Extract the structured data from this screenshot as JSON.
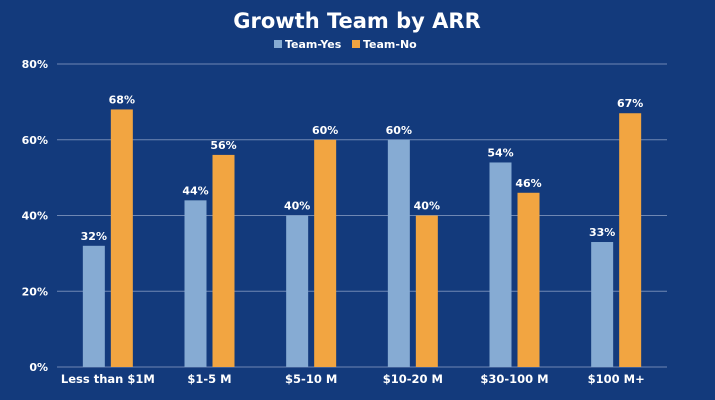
{
  "chart_data": {
    "type": "bar",
    "title": "Growth Team by ARR",
    "xlabel": "",
    "ylabel": "",
    "categories": [
      "Less than $1M",
      "$1-5 M",
      "$5-10 M",
      "$10-20 M",
      "$30-100 M",
      "$100 M+"
    ],
    "series": [
      {
        "name": "Team-Yes",
        "color": "#86abd3",
        "values": [
          32,
          44,
          40,
          60,
          54,
          33
        ],
        "labels": [
          "32%",
          "44%",
          "40%",
          "60%",
          "54%",
          "33%"
        ]
      },
      {
        "name": "Team-No",
        "color": "#f2a541",
        "values": [
          68,
          56,
          60,
          40,
          46,
          67
        ],
        "labels": [
          "68%",
          "56%",
          "60%",
          "40%",
          "46%",
          "67%"
        ]
      }
    ],
    "ylim": [
      0,
      80
    ],
    "yticks": [
      0,
      20,
      40,
      60,
      80
    ],
    "ytick_labels": [
      "0%",
      "20%",
      "40%",
      "60%",
      "80%"
    ],
    "grid": true,
    "legend_position": "top-center"
  },
  "colors": {
    "background": "#133a7c",
    "gridline": "#6f87b3",
    "text": "#ffffff"
  }
}
